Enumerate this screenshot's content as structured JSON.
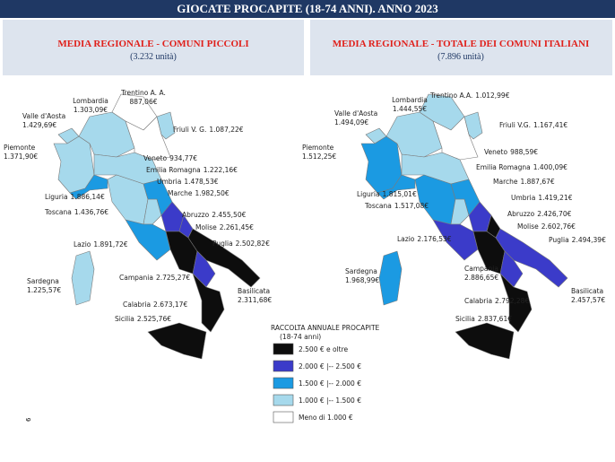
{
  "header": {
    "title": "GIOCATE PROCAPITE (18-74 ANNI). ANNO 2023"
  },
  "maps": [
    {
      "title": "MEDIA REGIONALE - COMUNI PICCOLI",
      "subtitle": "(3.232 unità)",
      "regions": [
        {
          "name": "Valle d'Aosta",
          "value": "1.429,69€",
          "color": "#a6d9ec"
        },
        {
          "name": "Piemonte",
          "value": "1.371,90€",
          "color": "#a6d9ec"
        },
        {
          "name": "Lombardia",
          "value": "1.303,09€",
          "color": "#a6d9ec"
        },
        {
          "name": "Trentino A. A.",
          "value": "887,06€",
          "color": "#ffffff"
        },
        {
          "name": "Veneto",
          "value": "934,77€",
          "color": "#ffffff"
        },
        {
          "name": "Friuli V. G.",
          "value": "1.087,22€",
          "color": "#a6d9ec"
        },
        {
          "name": "Emilia Romagna",
          "value": "1.222,16€",
          "color": "#a6d9ec"
        },
        {
          "name": "Liguria",
          "value": "1.886,14€",
          "color": "#1b9ae2"
        },
        {
          "name": "Toscana",
          "value": "1.436,76€",
          "color": "#a6d9ec"
        },
        {
          "name": "Umbria",
          "value": "1.478,53€",
          "color": "#a6d9ec"
        },
        {
          "name": "Marche",
          "value": "1.982,50€",
          "color": "#1b9ae2"
        },
        {
          "name": "Lazio",
          "value": "1.891,72€",
          "color": "#1b9ae2"
        },
        {
          "name": "Abruzzo",
          "value": "2.455,50€",
          "color": "#3b3bc9"
        },
        {
          "name": "Molise",
          "value": "2.261,45€",
          "color": "#3b3bc9"
        },
        {
          "name": "Campania",
          "value": "2.725,27€",
          "color": "#0d0d0d"
        },
        {
          "name": "Puglia",
          "value": "2.502,82€",
          "color": "#0d0d0d"
        },
        {
          "name": "Basilicata",
          "value": "2.311,68€",
          "color": "#3b3bc9"
        },
        {
          "name": "Calabria",
          "value": "2.673,17€",
          "color": "#0d0d0d"
        },
        {
          "name": "Sicilia",
          "value": "2.525,76€",
          "color": "#0d0d0d"
        },
        {
          "name": "Sardegna",
          "value": "1.225,57€",
          "color": "#a6d9ec"
        }
      ]
    },
    {
      "title": "MEDIA REGIONALE - TOTALE DEI COMUNI ITALIANI",
      "subtitle": "(7.896 unità)",
      "regions": [
        {
          "name": "Valle d'Aosta",
          "value": "1.494,09€",
          "color": "#a6d9ec"
        },
        {
          "name": "Piemonte",
          "value": "1.512,25€",
          "color": "#1b9ae2"
        },
        {
          "name": "Lombardia",
          "value": "1.444,55€",
          "color": "#a6d9ec"
        },
        {
          "name": "Trentino A.A.",
          "value": "1.012,99€",
          "color": "#a6d9ec"
        },
        {
          "name": "Veneto",
          "value": "988,59€",
          "color": "#ffffff"
        },
        {
          "name": "Friuli V.G.",
          "value": "1.167,41€",
          "color": "#a6d9ec"
        },
        {
          "name": "Emilia Romagna",
          "value": "1.400,09€",
          "color": "#a6d9ec"
        },
        {
          "name": "Liguria",
          "value": "1.815,01€",
          "color": "#1b9ae2"
        },
        {
          "name": "Toscana",
          "value": "1.517,08€",
          "color": "#1b9ae2"
        },
        {
          "name": "Umbria",
          "value": "1.419,21€",
          "color": "#a6d9ec"
        },
        {
          "name": "Marche",
          "value": "1.887,67€",
          "color": "#1b9ae2"
        },
        {
          "name": "Lazio",
          "value": "2.176,53€",
          "color": "#3b3bc9"
        },
        {
          "name": "Abruzzo",
          "value": "2.426,70€",
          "color": "#3b3bc9"
        },
        {
          "name": "Molise",
          "value": "2.602,76€",
          "color": "#0d0d0d"
        },
        {
          "name": "Campania",
          "value": "2.886,65€",
          "color": "#0d0d0d"
        },
        {
          "name": "Puglia",
          "value": "2.494,39€",
          "color": "#3b3bc9"
        },
        {
          "name": "Basilicata",
          "value": "2.457,57€",
          "color": "#3b3bc9"
        },
        {
          "name": "Calabria",
          "value": "2.792,28€",
          "color": "#0d0d0d"
        },
        {
          "name": "Sicilia",
          "value": "2.837,61€",
          "color": "#0d0d0d"
        },
        {
          "name": "Sardegna",
          "value": "1.968,99€",
          "color": "#1b9ae2"
        }
      ]
    }
  ],
  "legend": {
    "title": "RACCOLTA ANNUALE PROCAPITE",
    "subtitle": "(18-74 anni)",
    "items": [
      {
        "label": "2.500 € e oltre",
        "color": "#0d0d0d"
      },
      {
        "label": "2.000 € |-- 2.500 €",
        "color": "#3b3bc9"
      },
      {
        "label": "1.500 € |-- 2.000 €",
        "color": "#1b9ae2"
      },
      {
        "label": "1.000 € |-- 1.500 €",
        "color": "#a6d9ec"
      },
      {
        "label": "Meno di 1.000 €",
        "color": "#ffffff"
      }
    ]
  },
  "page_number": "6"
}
